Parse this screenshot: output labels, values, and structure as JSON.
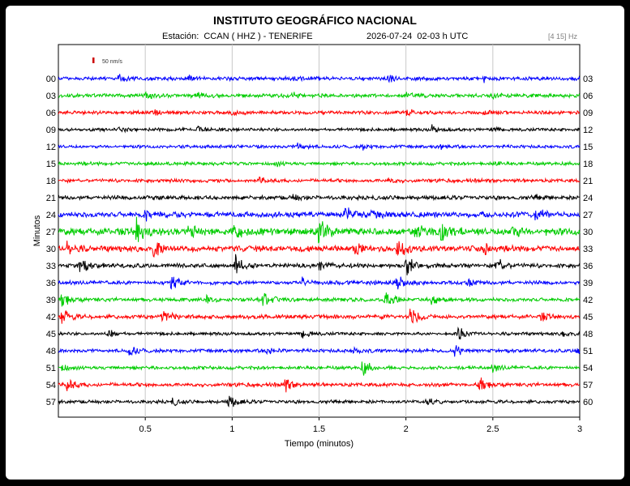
{
  "header": {
    "institute": "INSTITUTO GEOGRÁFICO NACIONAL",
    "station": "Estación:  CCAN ( HHZ ) - TENERIFE",
    "datetime": "2026-07-24  02-03 h UTC",
    "filter": "[4 15] Hz"
  },
  "chart_data": {
    "type": "line",
    "title": "INSTITUTO GEOGRÁFICO NACIONAL",
    "xlabel": "Tiempo (minutos)",
    "ylabel": "Minutos",
    "xlim": [
      0,
      3
    ],
    "x_ticks": [
      "0.5",
      "1",
      "1.5",
      "2",
      "2.5",
      "3"
    ],
    "x_tick_values": [
      0.5,
      1,
      1.5,
      2,
      2.5,
      3
    ],
    "grid": true,
    "scale_bar_label": "50 nm/s",
    "colors": {
      "blue": "#0000ff",
      "green": "#00cc00",
      "red": "#ff0000",
      "black": "#000000",
      "grid": "#c8c8c8",
      "scale": "#cc0000"
    },
    "traces": [
      {
        "left": "00",
        "right": "03",
        "color": "blue",
        "amp": 2.5,
        "events": [
          [
            0.35,
            6
          ],
          [
            0.75,
            4
          ],
          [
            1.35,
            3
          ],
          [
            1.9,
            4
          ],
          [
            2.45,
            3
          ]
        ]
      },
      {
        "left": "03",
        "right": "06",
        "color": "green",
        "amp": 2.6,
        "events": [
          [
            0.5,
            4
          ],
          [
            0.8,
            3
          ],
          [
            1.35,
            3
          ],
          [
            2.0,
            3
          ],
          [
            2.5,
            3
          ]
        ]
      },
      {
        "left": "06",
        "right": "09",
        "color": "red",
        "amp": 2.4,
        "events": [
          [
            0.55,
            3
          ],
          [
            1.0,
            3
          ],
          [
            2.0,
            5
          ],
          [
            2.45,
            3
          ]
        ]
      },
      {
        "left": "09",
        "right": "12",
        "color": "black",
        "amp": 2.2,
        "events": [
          [
            0.35,
            3
          ],
          [
            0.8,
            4
          ],
          [
            2.15,
            5
          ],
          [
            2.5,
            3
          ]
        ]
      },
      {
        "left": "12",
        "right": "15",
        "color": "blue",
        "amp": 2.2,
        "events": [
          [
            1.38,
            7
          ],
          [
            1.75,
            3
          ],
          [
            2.2,
            3
          ]
        ]
      },
      {
        "left": "15",
        "right": "18",
        "color": "green",
        "amp": 2.3,
        "events": [
          [
            0.5,
            3
          ],
          [
            1.25,
            3
          ],
          [
            2.5,
            3
          ]
        ]
      },
      {
        "left": "18",
        "right": "21",
        "color": "red",
        "amp": 2.4,
        "events": [
          [
            1.15,
            5
          ],
          [
            1.9,
            3
          ]
        ]
      },
      {
        "left": "21",
        "right": "24",
        "color": "black",
        "amp": 2.8,
        "events": [
          [
            0.5,
            4
          ],
          [
            1.35,
            4
          ],
          [
            2.75,
            3
          ]
        ]
      },
      {
        "left": "24",
        "right": "27",
        "color": "blue",
        "amp": 3.8,
        "events": [
          [
            0.5,
            6
          ],
          [
            1.65,
            9
          ],
          [
            1.8,
            6
          ],
          [
            2.75,
            10
          ]
        ]
      },
      {
        "left": "27",
        "right": "30",
        "color": "green",
        "amp": 5.0,
        "events": [
          [
            0.45,
            18
          ],
          [
            0.75,
            16
          ],
          [
            1.0,
            15
          ],
          [
            1.5,
            17
          ],
          [
            2.05,
            12
          ],
          [
            2.2,
            14
          ],
          [
            2.6,
            10
          ]
        ]
      },
      {
        "left": "30",
        "right": "33",
        "color": "red",
        "amp": 4.0,
        "events": [
          [
            0.05,
            9
          ],
          [
            0.55,
            10
          ],
          [
            1.7,
            8
          ],
          [
            1.95,
            14
          ],
          [
            2.45,
            8
          ]
        ]
      },
      {
        "left": "33",
        "right": "36",
        "color": "black",
        "amp": 3.0,
        "events": [
          [
            0.12,
            12
          ],
          [
            1.02,
            14
          ],
          [
            1.5,
            6
          ],
          [
            2.0,
            15
          ],
          [
            2.52,
            12
          ]
        ]
      },
      {
        "left": "36",
        "right": "39",
        "color": "blue",
        "amp": 2.6,
        "events": [
          [
            0.65,
            12
          ],
          [
            1.4,
            6
          ],
          [
            1.95,
            14
          ],
          [
            2.35,
            6
          ]
        ]
      },
      {
        "left": "39",
        "right": "42",
        "color": "green",
        "amp": 2.6,
        "events": [
          [
            0.02,
            10
          ],
          [
            0.85,
            5
          ],
          [
            1.18,
            10
          ],
          [
            1.88,
            13
          ],
          [
            2.15,
            6
          ]
        ]
      },
      {
        "left": "42",
        "right": "45",
        "color": "red",
        "amp": 2.8,
        "events": [
          [
            0.02,
            12
          ],
          [
            0.6,
            10
          ],
          [
            2.02,
            14
          ],
          [
            2.78,
            5
          ]
        ]
      },
      {
        "left": "45",
        "right": "48",
        "color": "black",
        "amp": 2.2,
        "events": [
          [
            0.28,
            8
          ],
          [
            1.4,
            7
          ],
          [
            2.3,
            9
          ],
          [
            2.9,
            4
          ]
        ]
      },
      {
        "left": "48",
        "right": "51",
        "color": "blue",
        "amp": 2.4,
        "events": [
          [
            0.4,
            9
          ],
          [
            1.2,
            5
          ],
          [
            1.7,
            4
          ],
          [
            2.28,
            10
          ],
          [
            2.98,
            8
          ]
        ]
      },
      {
        "left": "51",
        "right": "54",
        "color": "green",
        "amp": 2.4,
        "events": [
          [
            0.02,
            5
          ],
          [
            1.75,
            11
          ],
          [
            2.5,
            5
          ]
        ]
      },
      {
        "left": "54",
        "right": "57",
        "color": "red",
        "amp": 2.6,
        "events": [
          [
            0.05,
            11
          ],
          [
            1.3,
            10
          ],
          [
            2.42,
            10
          ]
        ]
      },
      {
        "left": "57",
        "right": "60",
        "color": "black",
        "amp": 2.3,
        "events": [
          [
            0.65,
            5
          ],
          [
            0.98,
            10
          ],
          [
            2.12,
            7
          ]
        ]
      }
    ]
  }
}
